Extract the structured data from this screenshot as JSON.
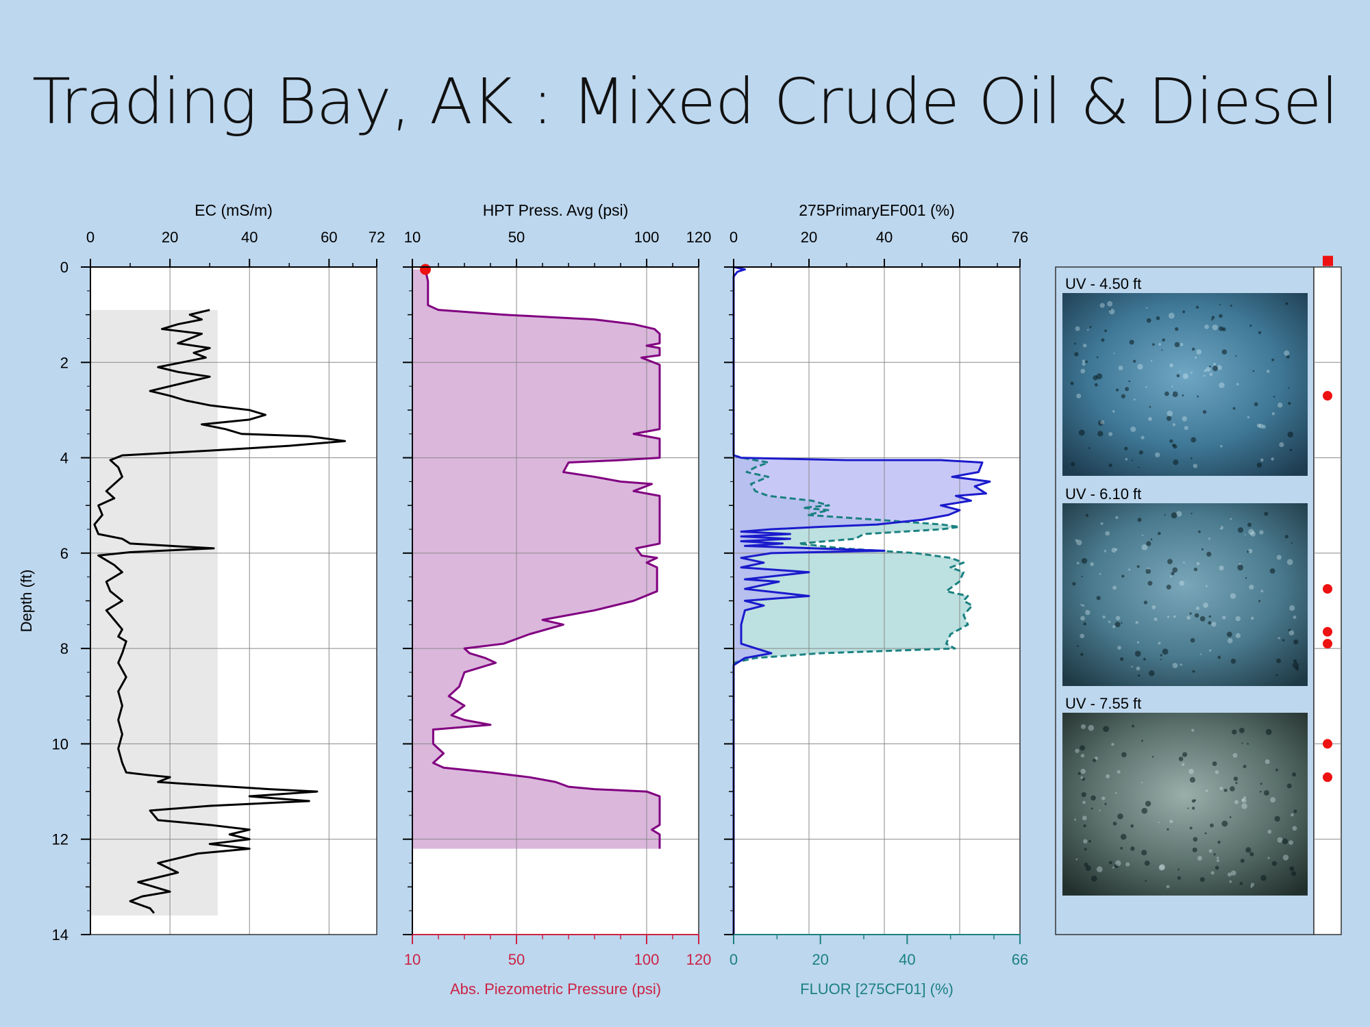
{
  "title": "Trading Bay, AK : Mixed Crude Oil & Diesel",
  "colors": {
    "background": "#bdd7ee",
    "ec_line": "#000000",
    "ec_fill": "#e8e8e8",
    "hpt_line": "#800080",
    "hpt_fill": "#dbb7dc",
    "ef_line": "#1a1acc",
    "ef_fill": "#b6b6f4",
    "fluor_line": "#1b8080",
    "fluor_fill": "#b9dede",
    "secondary_axis": "#cc2244",
    "marker": "#ee1111"
  },
  "depth_axis": {
    "label": "Depth (ft)",
    "ticks": [
      "0",
      "2",
      "4",
      "6",
      "8",
      "10",
      "12",
      "14"
    ],
    "range": [
      0,
      14
    ]
  },
  "panels": {
    "ec": {
      "label": "EC (mS/m)",
      "ticks": [
        "0",
        "20",
        "40",
        "60",
        "72"
      ]
    },
    "hpt": {
      "label": "HPT Press. Avg (psi)",
      "ticks": [
        "10",
        "50",
        "100",
        "120"
      ],
      "bottom_label": "Abs. Piezometric Pressure (psi)",
      "bottom_ticks": [
        "10",
        "50",
        "100",
        "120"
      ]
    },
    "fluor": {
      "label": "275PrimaryEF001 (%)",
      "ticks": [
        "0",
        "20",
        "40",
        "60",
        "76"
      ],
      "bottom_label": "FLUOR [275CF01] (%)",
      "bottom_ticks": [
        "0",
        "20",
        "40",
        "66"
      ]
    }
  },
  "photos": [
    {
      "label": "UV - 4.50 ft",
      "icon": "uv-core-photo"
    },
    {
      "label": "UV - 6.10 ft",
      "icon": "uv-core-photo"
    },
    {
      "label": "UV - 7.55 ft",
      "icon": "uv-core-photo"
    }
  ],
  "chart_data": [
    {
      "type": "line",
      "title": "EC (mS/m)",
      "xlabel": "EC (mS/m)",
      "ylabel": "Depth (ft)",
      "xlim": [
        0,
        72
      ],
      "ylim": [
        14,
        0
      ],
      "series": [
        {
          "name": "EC (mS/m)",
          "points": [
            [
              30,
              0.9
            ],
            [
              25,
              1.0
            ],
            [
              28,
              1.1
            ],
            [
              22,
              1.2
            ],
            [
              18,
              1.3
            ],
            [
              28,
              1.4
            ],
            [
              25,
              1.5
            ],
            [
              22,
              1.6
            ],
            [
              30,
              1.7
            ],
            [
              26,
              1.8
            ],
            [
              29,
              1.9
            ],
            [
              23,
              2.0
            ],
            [
              17,
              2.1
            ],
            [
              22,
              2.2
            ],
            [
              30,
              2.3
            ],
            [
              25,
              2.4
            ],
            [
              15,
              2.6
            ],
            [
              20,
              2.7
            ],
            [
              24,
              2.8
            ],
            [
              30,
              2.9
            ],
            [
              40,
              3.0
            ],
            [
              44,
              3.1
            ],
            [
              40,
              3.2
            ],
            [
              28,
              3.3
            ],
            [
              34,
              3.4
            ],
            [
              38,
              3.5
            ],
            [
              55,
              3.55
            ],
            [
              64,
              3.65
            ],
            [
              50,
              3.75
            ],
            [
              30,
              3.85
            ],
            [
              8,
              3.95
            ],
            [
              5,
              4.05
            ],
            [
              7,
              4.2
            ],
            [
              8,
              4.4
            ],
            [
              6,
              4.55
            ],
            [
              4,
              4.7
            ],
            [
              6,
              4.85
            ],
            [
              2,
              5.0
            ],
            [
              3,
              5.2
            ],
            [
              1,
              5.4
            ],
            [
              2,
              5.6
            ],
            [
              8,
              5.7
            ],
            [
              10,
              5.8
            ],
            [
              31,
              5.9
            ],
            [
              10,
              5.98
            ],
            [
              2,
              6.05
            ],
            [
              6,
              6.25
            ],
            [
              8,
              6.4
            ],
            [
              4,
              6.6
            ],
            [
              5,
              6.8
            ],
            [
              8,
              7.0
            ],
            [
              4,
              7.2
            ],
            [
              6,
              7.4
            ],
            [
              8,
              7.6
            ],
            [
              7,
              7.75
            ],
            [
              9,
              7.85
            ],
            [
              8,
              8.1
            ],
            [
              7,
              8.3
            ],
            [
              9,
              8.6
            ],
            [
              7,
              8.9
            ],
            [
              8,
              9.2
            ],
            [
              7,
              9.5
            ],
            [
              8,
              9.8
            ],
            [
              7,
              10.1
            ],
            [
              8,
              10.4
            ],
            [
              9,
              10.6
            ],
            [
              14,
              10.65
            ],
            [
              20,
              10.7
            ],
            [
              17,
              10.8
            ],
            [
              26,
              10.85
            ],
            [
              45,
              10.95
            ],
            [
              57,
              11.0
            ],
            [
              40,
              11.1
            ],
            [
              55,
              11.2
            ],
            [
              30,
              11.3
            ],
            [
              15,
              11.4
            ],
            [
              17,
              11.6
            ],
            [
              30,
              11.7
            ],
            [
              40,
              11.8
            ],
            [
              35,
              11.9
            ],
            [
              40,
              12.0
            ],
            [
              30,
              12.1
            ],
            [
              40,
              12.2
            ],
            [
              27,
              12.3
            ],
            [
              17,
              12.5
            ],
            [
              22,
              12.7
            ],
            [
              12,
              12.9
            ],
            [
              16,
              13.0
            ],
            [
              20,
              13.1
            ],
            [
              13,
              13.2
            ],
            [
              10,
              13.3
            ],
            [
              15,
              13.45
            ],
            [
              16,
              13.55
            ]
          ]
        }
      ]
    },
    {
      "type": "line",
      "title": "HPT Press. Avg (psi)",
      "xlabel": "HPT Press. Avg (psi)",
      "ylabel": "Depth (ft)",
      "xlim": [
        10,
        120
      ],
      "ylim": [
        14,
        0
      ],
      "series": [
        {
          "name": "HPT Press. Avg (psi)",
          "points": [
            [
              15,
              0.05
            ],
            [
              16,
              0.3
            ],
            [
              16,
              0.8
            ],
            [
              20,
              0.9
            ],
            [
              45,
              1.0
            ],
            [
              80,
              1.1
            ],
            [
              95,
              1.2
            ],
            [
              103,
              1.3
            ],
            [
              105,
              1.4
            ],
            [
              105,
              1.6
            ],
            [
              100,
              1.65
            ],
            [
              105,
              1.7
            ],
            [
              105,
              1.85
            ],
            [
              98,
              1.9
            ],
            [
              105,
              2.05
            ],
            [
              105,
              3.4
            ],
            [
              95,
              3.5
            ],
            [
              105,
              3.6
            ],
            [
              105,
              4.0
            ],
            [
              90,
              4.05
            ],
            [
              70,
              4.1
            ],
            [
              68,
              4.3
            ],
            [
              80,
              4.4
            ],
            [
              90,
              4.5
            ],
            [
              102,
              4.55
            ],
            [
              95,
              4.7
            ],
            [
              105,
              4.8
            ],
            [
              105,
              5.8
            ],
            [
              96,
              5.9
            ],
            [
              98,
              6.05
            ],
            [
              104,
              6.1
            ],
            [
              100,
              6.2
            ],
            [
              104,
              6.3
            ],
            [
              104,
              6.8
            ],
            [
              95,
              7.0
            ],
            [
              80,
              7.2
            ],
            [
              70,
              7.3
            ],
            [
              60,
              7.4
            ],
            [
              68,
              7.5
            ],
            [
              55,
              7.7
            ],
            [
              45,
              7.9
            ],
            [
              30,
              8.0
            ],
            [
              32,
              8.1
            ],
            [
              38,
              8.2
            ],
            [
              42,
              8.3
            ],
            [
              30,
              8.5
            ],
            [
              28,
              8.8
            ],
            [
              24,
              9.0
            ],
            [
              30,
              9.2
            ],
            [
              25,
              9.4
            ],
            [
              30,
              9.5
            ],
            [
              40,
              9.6
            ],
            [
              18,
              9.7
            ],
            [
              18,
              10.0
            ],
            [
              22,
              10.2
            ],
            [
              18,
              10.4
            ],
            [
              22,
              10.5
            ],
            [
              40,
              10.6
            ],
            [
              55,
              10.7
            ],
            [
              65,
              10.8
            ],
            [
              70,
              10.9
            ],
            [
              80,
              10.95
            ],
            [
              100,
              11.0
            ],
            [
              105,
              11.1
            ],
            [
              105,
              11.7
            ],
            [
              102,
              11.8
            ],
            [
              105,
              11.9
            ],
            [
              105,
              12.2
            ]
          ]
        }
      ]
    },
    {
      "type": "area",
      "title": "275PrimaryEF001 (%)",
      "xlabel": "275PrimaryEF001 (%)",
      "ylabel": "Depth (ft)",
      "xlim": [
        0,
        76
      ],
      "ylim": [
        14,
        0
      ],
      "series": [
        {
          "name": "275PrimaryEF001 (%)",
          "points": [
            [
              0,
              0
            ],
            [
              3,
              0.05
            ],
            [
              1,
              0.1
            ],
            [
              0,
              0.2
            ],
            [
              0,
              3.95
            ],
            [
              2,
              4.0
            ],
            [
              30,
              4.05
            ],
            [
              55,
              4.05
            ],
            [
              66,
              4.1
            ],
            [
              65,
              4.3
            ],
            [
              58,
              4.4
            ],
            [
              68,
              4.5
            ],
            [
              64,
              4.6
            ],
            [
              67,
              4.75
            ],
            [
              59,
              4.8
            ],
            [
              63,
              4.9
            ],
            [
              55,
              5.0
            ],
            [
              60,
              5.1
            ],
            [
              57,
              5.2
            ],
            [
              50,
              5.3
            ],
            [
              38,
              5.4
            ],
            [
              23,
              5.45
            ],
            [
              10,
              5.5
            ],
            [
              2,
              5.55
            ],
            [
              15,
              5.6
            ],
            [
              2,
              5.65
            ],
            [
              15,
              5.7
            ],
            [
              2,
              5.75
            ],
            [
              13,
              5.8
            ],
            [
              3,
              5.85
            ],
            [
              40,
              5.95
            ],
            [
              10,
              6.0
            ],
            [
              2,
              6.1
            ],
            [
              8,
              6.2
            ],
            [
              2,
              6.3
            ],
            [
              20,
              6.4
            ],
            [
              3,
              6.55
            ],
            [
              12,
              6.6
            ],
            [
              3,
              6.75
            ],
            [
              20,
              6.9
            ],
            [
              3,
              7.0
            ],
            [
              8,
              7.1
            ],
            [
              3,
              7.2
            ],
            [
              2,
              7.5
            ],
            [
              2,
              7.9
            ],
            [
              6,
              8.0
            ],
            [
              10,
              8.1
            ],
            [
              3,
              8.2
            ],
            [
              0,
              8.35
            ],
            [
              0,
              14
            ]
          ]
        },
        {
          "name": "FLUOR [275CF01] (%)",
          "points": [
            [
              0,
              3.95
            ],
            [
              2,
              4.0
            ],
            [
              8,
              4.1
            ],
            [
              5,
              4.2
            ],
            [
              3,
              4.3
            ],
            [
              8,
              4.4
            ],
            [
              4,
              4.55
            ],
            [
              5,
              4.7
            ],
            [
              8,
              4.8
            ],
            [
              18,
              4.9
            ],
            [
              22,
              5.0
            ],
            [
              16,
              5.05
            ],
            [
              22,
              5.1
            ],
            [
              17,
              5.2
            ],
            [
              33,
              5.3
            ],
            [
              48,
              5.4
            ],
            [
              52,
              5.45
            ],
            [
              48,
              5.5
            ],
            [
              30,
              5.6
            ],
            [
              28,
              5.7
            ],
            [
              15,
              5.8
            ],
            [
              25,
              5.9
            ],
            [
              42,
              6.0
            ],
            [
              50,
              6.1
            ],
            [
              53,
              6.2
            ],
            [
              50,
              6.3
            ],
            [
              53,
              6.4
            ],
            [
              52,
              6.6
            ],
            [
              49,
              6.8
            ],
            [
              54,
              6.9
            ],
            [
              53,
              7.0
            ],
            [
              55,
              7.1
            ],
            [
              53,
              7.3
            ],
            [
              54,
              7.5
            ],
            [
              50,
              7.7
            ],
            [
              49,
              7.9
            ],
            [
              51,
              8.0
            ],
            [
              20,
              8.1
            ],
            [
              5,
              8.2
            ],
            [
              0,
              8.3
            ]
          ]
        }
      ]
    }
  ],
  "markers": {
    "square_depth": -0.12,
    "dot_depths": [
      2.7,
      6.75,
      7.65,
      7.9,
      10.0,
      10.7
    ]
  }
}
